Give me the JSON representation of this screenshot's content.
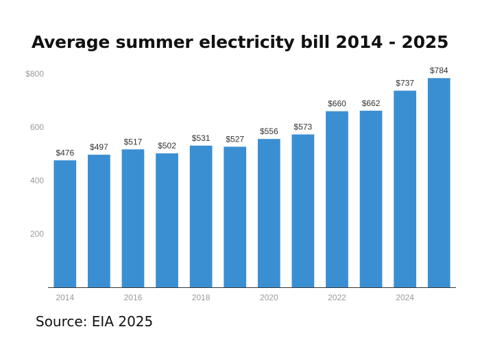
{
  "title": "Average summer electricity bill 2014 - 2025",
  "source": "Source: EIA 2025",
  "chart_data": {
    "type": "bar",
    "title": "Average summer electricity bill 2014 - 2025",
    "xlabel": "",
    "ylabel": "",
    "categories": [
      "2014",
      "2015",
      "2016",
      "2017",
      "2018",
      "2019",
      "2020",
      "2021",
      "2022",
      "2023",
      "2024",
      "2025"
    ],
    "x_tick_labels": [
      "2014",
      "2016",
      "2018",
      "2020",
      "2022",
      "2024"
    ],
    "values": [
      476,
      497,
      517,
      502,
      531,
      527,
      556,
      573,
      660,
      662,
      737,
      784
    ],
    "data_labels": [
      "$476",
      "$497",
      "$517",
      "$502",
      "$531",
      "$527",
      "$556",
      "$573",
      "$660",
      "$662",
      "$737",
      "$784"
    ],
    "y_ticks": [
      200,
      400,
      600,
      800
    ],
    "y_tick_labels": [
      "200",
      "400",
      "600",
      "$800"
    ],
    "ylim": [
      0,
      800
    ],
    "grid": false,
    "legend": "none",
    "bar_color": "#3a8fd3"
  }
}
